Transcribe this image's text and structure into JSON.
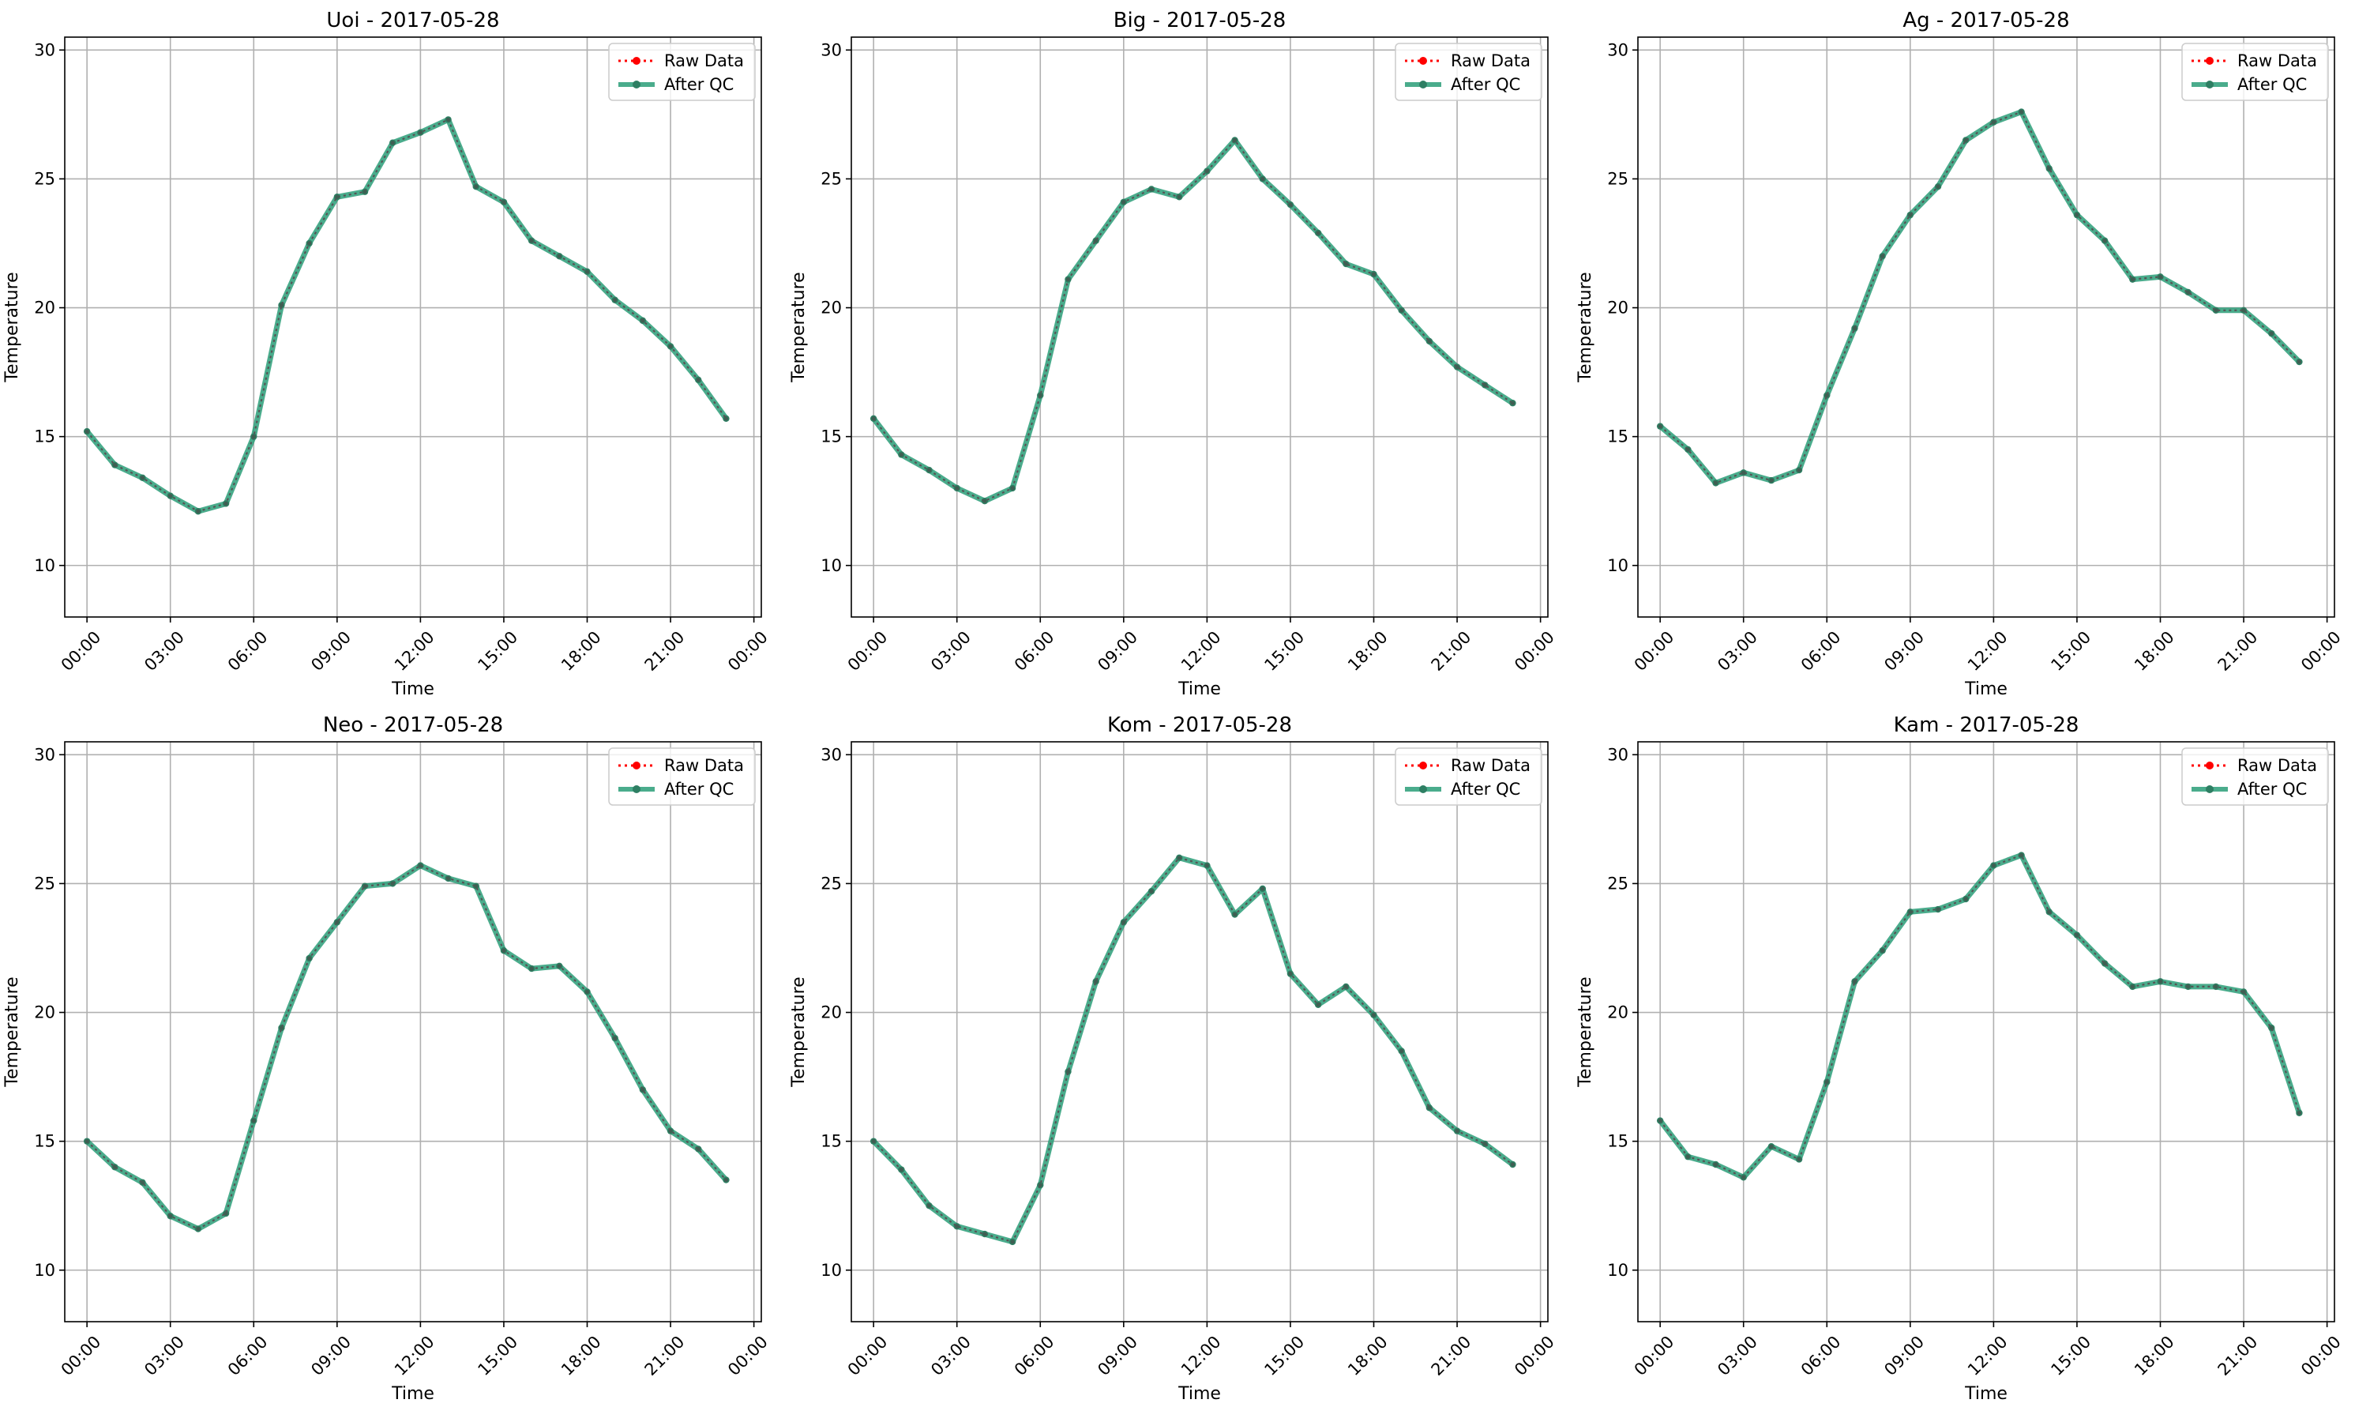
{
  "chart_data": [
    {
      "type": "line",
      "title": "Uoi - 2017-05-28",
      "xlabel": "Time",
      "ylabel": "Temperature",
      "ylim": [
        8,
        30.5
      ],
      "yticks": [
        10,
        15,
        20,
        25,
        30
      ],
      "xlim": [
        "2017-05-27 23:12",
        "2017-05-29 00:16"
      ],
      "xticks": [
        "00:00",
        "03:00",
        "06:00",
        "09:00",
        "12:00",
        "15:00",
        "18:00",
        "21:00",
        "00:00"
      ],
      "grid": true,
      "legend_position": "top-right",
      "x": [
        "00:00",
        "01:00",
        "02:00",
        "03:00",
        "04:00",
        "05:00",
        "06:00",
        "07:00",
        "08:00",
        "09:00",
        "10:00",
        "11:00",
        "12:00",
        "13:00",
        "14:00",
        "15:00",
        "16:00",
        "17:00",
        "18:00",
        "19:00",
        "20:00",
        "21:00",
        "22:00",
        "23:00"
      ],
      "series": [
        {
          "name": "Raw Data",
          "color": "#ff0000",
          "style": "dotted",
          "values": [
            15.2,
            13.9,
            13.4,
            12.7,
            12.1,
            12.4,
            15.0,
            20.1,
            22.5,
            24.3,
            24.5,
            26.4,
            26.8,
            27.3,
            24.7,
            24.1,
            22.6,
            22.0,
            21.4,
            20.3,
            19.5,
            18.5,
            17.2,
            15.7
          ]
        },
        {
          "name": "After QC",
          "color": "#2a9d78",
          "style": "solid",
          "values": [
            15.2,
            13.9,
            13.4,
            12.7,
            12.1,
            12.4,
            15.0,
            20.1,
            22.5,
            24.3,
            24.5,
            26.4,
            26.8,
            27.3,
            24.7,
            24.1,
            22.6,
            22.0,
            21.4,
            20.3,
            19.5,
            18.5,
            17.2,
            15.7
          ]
        }
      ]
    },
    {
      "type": "line",
      "title": "Big - 2017-05-28",
      "xlabel": "Time",
      "ylabel": "Temperature",
      "ylim": [
        8,
        30.5
      ],
      "yticks": [
        10,
        15,
        20,
        25,
        30
      ],
      "xlim": [
        "2017-05-27 23:12",
        "2017-05-29 00:16"
      ],
      "xticks": [
        "00:00",
        "03:00",
        "06:00",
        "09:00",
        "12:00",
        "15:00",
        "18:00",
        "21:00",
        "00:00"
      ],
      "grid": true,
      "legend_position": "top-right",
      "x": [
        "00:00",
        "01:00",
        "02:00",
        "03:00",
        "04:00",
        "05:00",
        "06:00",
        "07:00",
        "08:00",
        "09:00",
        "10:00",
        "11:00",
        "12:00",
        "13:00",
        "14:00",
        "15:00",
        "16:00",
        "17:00",
        "18:00",
        "19:00",
        "20:00",
        "21:00",
        "22:00",
        "23:00"
      ],
      "series": [
        {
          "name": "Raw Data",
          "color": "#ff0000",
          "style": "dotted",
          "values": [
            15.7,
            14.3,
            13.7,
            13.0,
            12.5,
            13.0,
            16.6,
            21.1,
            22.6,
            24.1,
            24.6,
            24.3,
            25.3,
            26.5,
            25.0,
            24.0,
            22.9,
            21.7,
            21.3,
            19.9,
            18.7,
            17.7,
            17.0,
            16.3
          ]
        },
        {
          "name": "After QC",
          "color": "#2a9d78",
          "style": "solid",
          "values": [
            15.7,
            14.3,
            13.7,
            13.0,
            12.5,
            13.0,
            16.6,
            21.1,
            22.6,
            24.1,
            24.6,
            24.3,
            25.3,
            26.5,
            25.0,
            24.0,
            22.9,
            21.7,
            21.3,
            19.9,
            18.7,
            17.7,
            17.0,
            16.3
          ]
        }
      ]
    },
    {
      "type": "line",
      "title": "Ag - 2017-05-28",
      "xlabel": "Time",
      "ylabel": "Temperature",
      "ylim": [
        8,
        30.5
      ],
      "yticks": [
        10,
        15,
        20,
        25,
        30
      ],
      "xlim": [
        "2017-05-27 23:12",
        "2017-05-29 00:16"
      ],
      "xticks": [
        "00:00",
        "03:00",
        "06:00",
        "09:00",
        "12:00",
        "15:00",
        "18:00",
        "21:00",
        "00:00"
      ],
      "grid": true,
      "legend_position": "top-right",
      "x": [
        "00:00",
        "01:00",
        "02:00",
        "03:00",
        "04:00",
        "05:00",
        "06:00",
        "07:00",
        "08:00",
        "09:00",
        "10:00",
        "11:00",
        "12:00",
        "13:00",
        "14:00",
        "15:00",
        "16:00",
        "17:00",
        "18:00",
        "19:00",
        "20:00",
        "21:00",
        "22:00",
        "23:00"
      ],
      "series": [
        {
          "name": "Raw Data",
          "color": "#ff0000",
          "style": "dotted",
          "values": [
            15.4,
            14.5,
            13.2,
            13.6,
            13.3,
            13.7,
            16.6,
            19.2,
            22.0,
            23.6,
            24.7,
            26.5,
            27.2,
            27.6,
            25.4,
            23.6,
            22.6,
            21.1,
            21.2,
            20.6,
            19.9,
            19.9,
            19.0,
            17.9
          ]
        },
        {
          "name": "After QC",
          "color": "#2a9d78",
          "style": "solid",
          "values": [
            15.4,
            14.5,
            13.2,
            13.6,
            13.3,
            13.7,
            16.6,
            19.2,
            22.0,
            23.6,
            24.7,
            26.5,
            27.2,
            27.6,
            25.4,
            23.6,
            22.6,
            21.1,
            21.2,
            20.6,
            19.9,
            19.9,
            19.0,
            17.9
          ]
        }
      ]
    },
    {
      "type": "line",
      "title": "Neo - 2017-05-28",
      "xlabel": "Time",
      "ylabel": "Temperature",
      "ylim": [
        8,
        30.5
      ],
      "yticks": [
        10,
        15,
        20,
        25,
        30
      ],
      "xlim": [
        "2017-05-27 23:12",
        "2017-05-29 00:16"
      ],
      "xticks": [
        "00:00",
        "03:00",
        "06:00",
        "09:00",
        "12:00",
        "15:00",
        "18:00",
        "21:00",
        "00:00"
      ],
      "grid": true,
      "legend_position": "top-right",
      "x": [
        "00:00",
        "01:00",
        "02:00",
        "03:00",
        "04:00",
        "05:00",
        "06:00",
        "07:00",
        "08:00",
        "09:00",
        "10:00",
        "11:00",
        "12:00",
        "13:00",
        "14:00",
        "15:00",
        "16:00",
        "17:00",
        "18:00",
        "19:00",
        "20:00",
        "21:00",
        "22:00",
        "23:00"
      ],
      "series": [
        {
          "name": "Raw Data",
          "color": "#ff0000",
          "style": "dotted",
          "values": [
            15.0,
            14.0,
            13.4,
            12.1,
            11.6,
            12.2,
            15.8,
            19.4,
            22.1,
            23.5,
            24.9,
            25.0,
            25.7,
            25.2,
            24.9,
            22.4,
            21.7,
            21.8,
            20.8,
            19.0,
            17.0,
            15.4,
            14.7,
            13.5
          ]
        },
        {
          "name": "After QC",
          "color": "#2a9d78",
          "style": "solid",
          "values": [
            15.0,
            14.0,
            13.4,
            12.1,
            11.6,
            12.2,
            15.8,
            19.4,
            22.1,
            23.5,
            24.9,
            25.0,
            25.7,
            25.2,
            24.9,
            22.4,
            21.7,
            21.8,
            20.8,
            19.0,
            17.0,
            15.4,
            14.7,
            13.5
          ]
        }
      ]
    },
    {
      "type": "line",
      "title": "Kom - 2017-05-28",
      "xlabel": "Time",
      "ylabel": "Temperature",
      "ylim": [
        8,
        30.5
      ],
      "yticks": [
        10,
        15,
        20,
        25,
        30
      ],
      "xlim": [
        "2017-05-27 23:12",
        "2017-05-29 00:16"
      ],
      "xticks": [
        "00:00",
        "03:00",
        "06:00",
        "09:00",
        "12:00",
        "15:00",
        "18:00",
        "21:00",
        "00:00"
      ],
      "grid": true,
      "legend_position": "top-right",
      "x": [
        "00:00",
        "01:00",
        "02:00",
        "03:00",
        "04:00",
        "05:00",
        "06:00",
        "07:00",
        "08:00",
        "09:00",
        "10:00",
        "11:00",
        "12:00",
        "13:00",
        "14:00",
        "15:00",
        "16:00",
        "17:00",
        "18:00",
        "19:00",
        "20:00",
        "21:00",
        "22:00",
        "23:00"
      ],
      "series": [
        {
          "name": "Raw Data",
          "color": "#ff0000",
          "style": "dotted",
          "values": [
            15.0,
            13.9,
            12.5,
            11.7,
            11.4,
            11.1,
            13.3,
            17.7,
            21.2,
            23.5,
            24.7,
            26.0,
            25.7,
            23.8,
            24.8,
            21.5,
            20.3,
            21.0,
            19.9,
            18.5,
            16.3,
            15.4,
            14.9,
            14.1
          ]
        },
        {
          "name": "After QC",
          "color": "#2a9d78",
          "style": "solid",
          "values": [
            15.0,
            13.9,
            12.5,
            11.7,
            11.4,
            11.1,
            13.3,
            17.7,
            21.2,
            23.5,
            24.7,
            26.0,
            25.7,
            23.8,
            24.8,
            21.5,
            20.3,
            21.0,
            19.9,
            18.5,
            16.3,
            15.4,
            14.9,
            14.1
          ]
        }
      ]
    },
    {
      "type": "line",
      "title": "Kam - 2017-05-28",
      "xlabel": "Time",
      "ylabel": "Temperature",
      "ylim": [
        8,
        30.5
      ],
      "yticks": [
        10,
        15,
        20,
        25,
        30
      ],
      "xlim": [
        "2017-05-27 23:12",
        "2017-05-29 00:16"
      ],
      "xticks": [
        "00:00",
        "03:00",
        "06:00",
        "09:00",
        "12:00",
        "15:00",
        "18:00",
        "21:00",
        "00:00"
      ],
      "grid": true,
      "legend_position": "top-right",
      "x": [
        "00:00",
        "01:00",
        "02:00",
        "03:00",
        "04:00",
        "05:00",
        "06:00",
        "07:00",
        "08:00",
        "09:00",
        "10:00",
        "11:00",
        "12:00",
        "13:00",
        "14:00",
        "15:00",
        "16:00",
        "17:00",
        "18:00",
        "19:00",
        "20:00",
        "21:00",
        "22:00",
        "23:00"
      ],
      "series": [
        {
          "name": "Raw Data",
          "color": "#ff0000",
          "style": "dotted",
          "values": [
            15.8,
            14.4,
            14.1,
            13.6,
            14.8,
            14.3,
            17.3,
            21.2,
            22.4,
            23.9,
            24.0,
            24.4,
            25.7,
            26.1,
            23.9,
            23.0,
            21.9,
            21.0,
            21.2,
            21.0,
            21.0,
            20.8,
            19.4,
            16.1
          ]
        },
        {
          "name": "After QC",
          "color": "#2a9d78",
          "style": "solid",
          "values": [
            15.8,
            14.4,
            14.1,
            13.6,
            14.8,
            14.3,
            17.3,
            21.2,
            22.4,
            23.9,
            24.0,
            24.4,
            25.7,
            26.1,
            23.9,
            23.0,
            21.9,
            21.0,
            21.2,
            21.0,
            21.0,
            20.8,
            19.4,
            16.1
          ]
        }
      ]
    }
  ]
}
